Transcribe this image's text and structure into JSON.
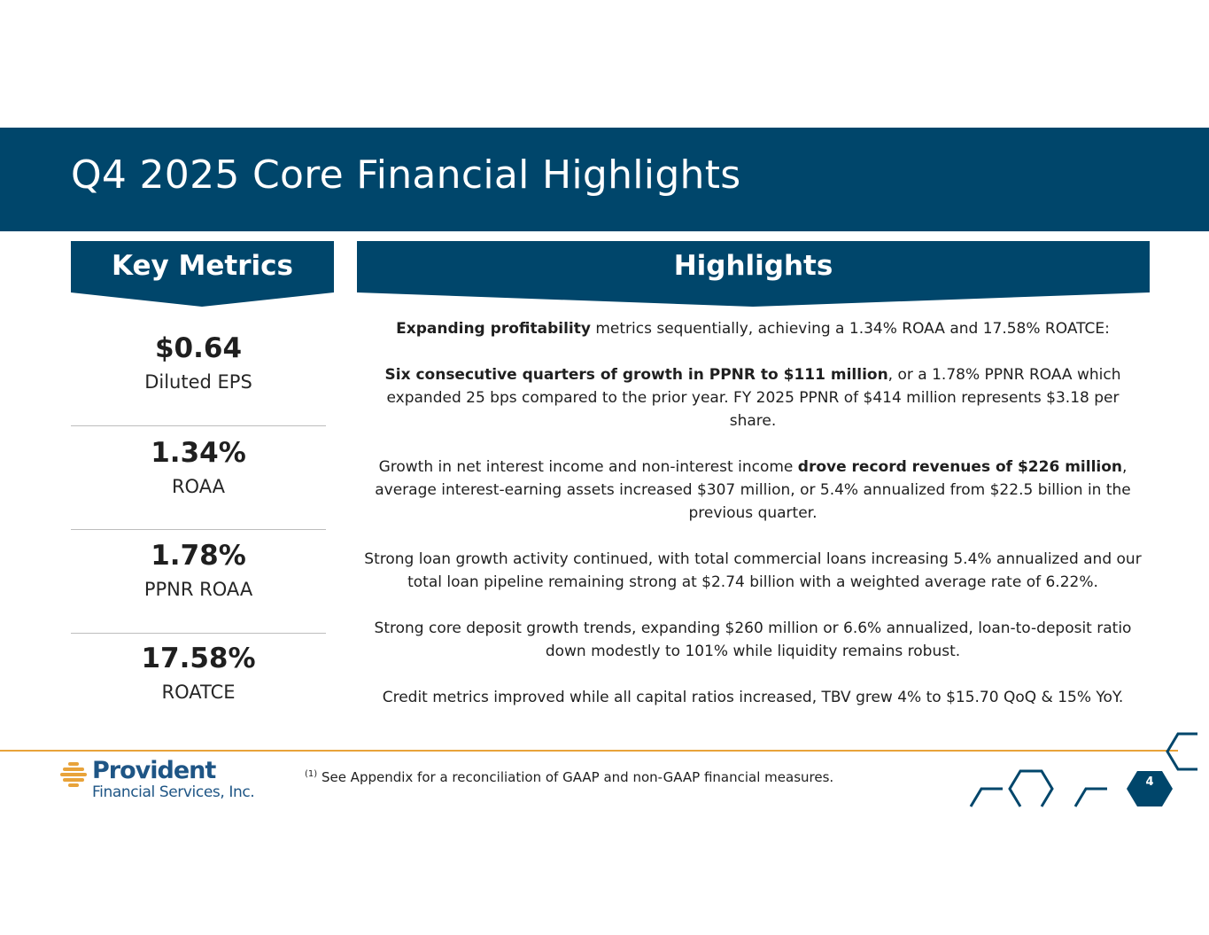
{
  "slide": {
    "title": "Q4 2025 Core Financial Highlights",
    "page_number": "4",
    "colors": {
      "band": "#00466b",
      "rule": "#e8a33a",
      "logo": "#1e5585"
    }
  },
  "key_metrics": {
    "header": "Key Metrics",
    "items": [
      {
        "value": "$0.64",
        "label": "Diluted EPS"
      },
      {
        "value": "1.34%",
        "label": "ROAA"
      },
      {
        "value": "1.78%",
        "label": "PPNR ROAA"
      },
      {
        "value": "17.58%",
        "label": "ROATCE"
      }
    ]
  },
  "highlights": {
    "header": "Highlights",
    "p1": {
      "bold": "Expanding profitability",
      "rest": " metrics sequentially, achieving a 1.34% ROAA and 17.58% ROATCE:"
    },
    "p2": {
      "bold": "Six consecutive quarters of growth in PPNR to $111 million",
      "rest": ", or a 1.78% PPNR ROAA which expanded 25 bps compared to the prior year. FY 2025 PPNR of $414 million represents $3.18 per share."
    },
    "p3": {
      "pre": "Growth in net interest income and non-interest income ",
      "bold": "drove record revenues of $226 million",
      "rest": ", average interest-earning assets increased $307 million, or 5.4% annualized from $22.5 billion in the previous quarter."
    },
    "p4": "Strong loan growth activity continued, with total commercial loans increasing 5.4% annualized and our total loan pipeline remaining strong at $2.74 billion with a weighted average rate of 6.22%.",
    "p5": "Strong core deposit growth trends, expanding $260 million or 6.6% annualized, loan-to-deposit ratio down modestly to 101% while liquidity remains robust.",
    "p6": "Credit metrics improved while all capital ratios increased, TBV grew 4% to $15.70 QoQ & 15% YoY."
  },
  "footer": {
    "logo_name": "Provident",
    "logo_sub": "Financial Services, Inc.",
    "footnote_marker": "(1)",
    "footnote": " See Appendix for a reconciliation of GAAP and non-GAAP financial measures."
  }
}
